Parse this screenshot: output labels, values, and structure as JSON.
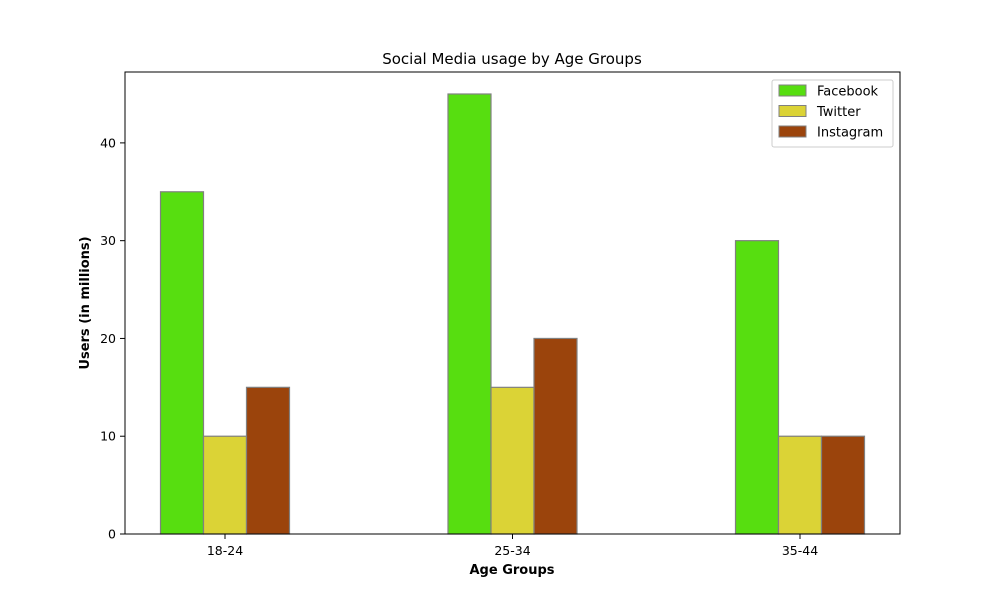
{
  "chart_data": {
    "type": "bar",
    "title": "Social Media usage by Age Groups",
    "xlabel": "Age Groups",
    "ylabel": "Users (in millions)",
    "categories": [
      "18-24",
      "25-34",
      "35-44"
    ],
    "series": [
      {
        "name": "Facebook",
        "values": [
          35,
          45,
          30
        ],
        "color": "#57de10"
      },
      {
        "name": "Twitter",
        "values": [
          10,
          15,
          10
        ],
        "color": "#dbd336"
      },
      {
        "name": "Instagram",
        "values": [
          15,
          20,
          10
        ],
        "color": "#9b440c"
      }
    ],
    "ylim": [
      0,
      47.25
    ],
    "yticks": [
      0,
      10,
      20,
      30,
      40
    ],
    "legend_position": "top-right",
    "grid": false,
    "bar_edge_color": "#808080"
  }
}
